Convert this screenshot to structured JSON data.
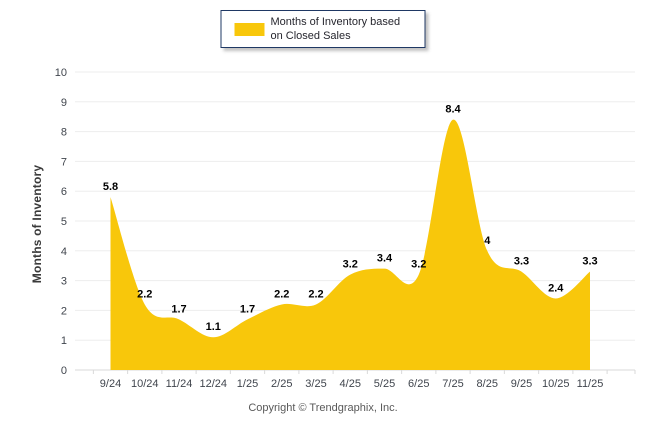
{
  "legend": {
    "label": "Months of Inventory based on Closed Sales"
  },
  "footer": {
    "copyright": "Copyright © Trendgraphix, Inc."
  },
  "colors": {
    "area_fill": "#F8C70B",
    "legend_border": "#1F3864",
    "grid_line": "#EDEDED",
    "axis_line": "#D9D9D9",
    "tick_mark": "#D9D9D9",
    "axis_text": "#40454D",
    "data_label": "#000000",
    "copyright_text": "#595959"
  },
  "chart_data": {
    "type": "area",
    "title": "",
    "xlabel": "",
    "ylabel": "Months of Inventory",
    "categories": [
      "9/24",
      "10/24",
      "11/24",
      "12/24",
      "1/25",
      "2/25",
      "3/25",
      "4/25",
      "5/25",
      "6/25",
      "7/25",
      "8/25",
      "9/25",
      "10/25",
      "11/25"
    ],
    "series": [
      {
        "name": "Months of Inventory based on Closed Sales",
        "values": [
          5.8,
          2.2,
          1.7,
          1.1,
          1.7,
          2.2,
          2.2,
          3.2,
          3.4,
          3.2,
          8.4,
          4,
          3.3,
          2.4,
          3.3
        ],
        "color": "#F8C70B"
      }
    ],
    "ylim": [
      0,
      10
    ],
    "yticks": [
      0,
      1,
      2,
      3,
      4,
      5,
      6,
      7,
      8,
      9,
      10
    ],
    "grid": true,
    "data_labels": true,
    "legend_position": "top-center",
    "smooth": true
  }
}
